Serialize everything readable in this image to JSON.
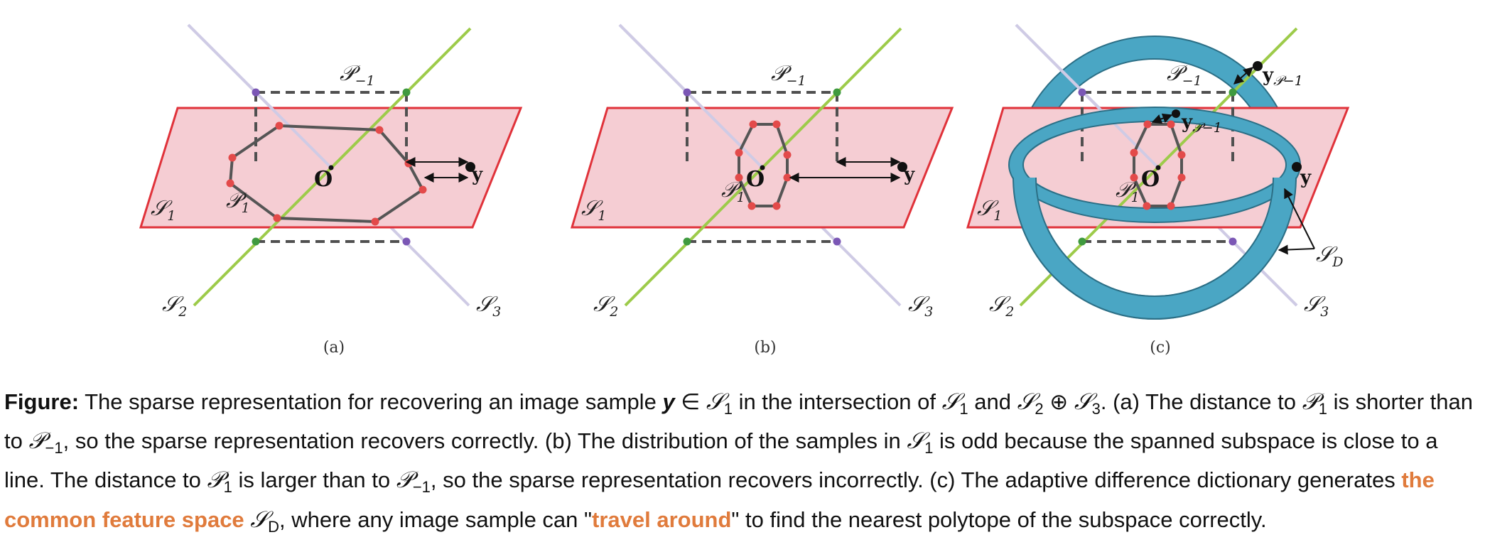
{
  "panels": [
    {
      "label": "(a)"
    },
    {
      "label": "(b)"
    },
    {
      "label": "(c)"
    }
  ],
  "math": {
    "S": "𝒮",
    "P": "𝒫",
    "sub_1": "1",
    "sub_2": "2",
    "sub_3": "3",
    "sub_D": "D",
    "sub_minus1": "−1",
    "O": "O",
    "y": "y",
    "yP1_sub": "𝒫1",
    "yPm1_sub": "𝒫−1"
  },
  "caption": {
    "lead": "Figure:",
    "t1": " The sparse representation for recovering an image sample ",
    "y": "y",
    "in": " ∈ ",
    "S": "𝒮",
    "P": "𝒫",
    "s1": "1",
    "s2": "2",
    "s3": "3",
    "sD": "D",
    "sm1": "−1",
    "t2": " in the intersection of ",
    "t3": " and ",
    "oplus": " ⊕ ",
    "t4": ". (a) The distance to ",
    "t5": " is shorter than to ",
    "t6": ", so the sparse representation recovers correctly. (b) The distribution of the samples in ",
    "t7": " is odd because the spanned subspace is close to a line. The distance to ",
    "t8": " is larger than to ",
    "t9": ", so the sparse representation recovers incorrectly. (c) The adaptive difference dictionary generates ",
    "hl1": "the common feature space",
    "t10": ", where any image sample can \"",
    "hl2": "travel around",
    "t11": "\" to find the nearest polytope of the subspace correctly."
  }
}
